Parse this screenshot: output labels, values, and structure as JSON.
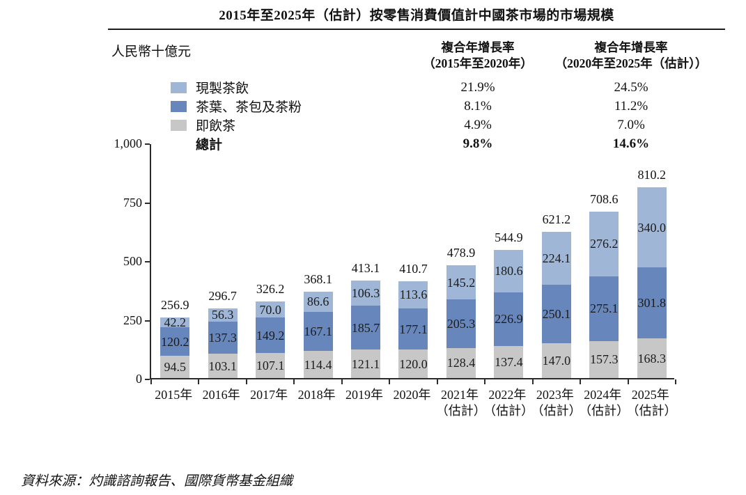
{
  "title": "2015年至2025年（估計）按零售消費價值計中國茶市場的市場規模",
  "unit_label": "人民幣十億元",
  "cagr_columns": [
    {
      "line1": "複合年增長率",
      "line2": "（2015年至2020年）"
    },
    {
      "line1": "複合年增長率",
      "line2": "（2020年至2025年（估計））"
    }
  ],
  "legend": [
    {
      "label": "現製茶飲",
      "color": "#9fb6d6",
      "bold": false,
      "cagr_2015_2020": "21.9%",
      "cagr_2020_2025": "24.5%"
    },
    {
      "label": "茶葉、茶包及茶粉",
      "color": "#6686bc",
      "bold": false,
      "cagr_2015_2020": "8.1%",
      "cagr_2020_2025": "11.2%"
    },
    {
      "label": "即飲茶",
      "color": "#c7c7c7",
      "bold": false,
      "cagr_2015_2020": "4.9%",
      "cagr_2020_2025": "7.0%"
    },
    {
      "label": "總計",
      "color": null,
      "bold": true,
      "cagr_2015_2020": "9.8%",
      "cagr_2020_2025": "14.6%"
    }
  ],
  "source": "資料來源：灼識諮詢報告、國際貨幣基金組織",
  "chart_data": {
    "type": "bar",
    "stacked": true,
    "title": "2015年至2025年（估計）按零售消費價值計中國茶市場的市場規模",
    "ylabel": "人民幣十億元",
    "xlabel": "",
    "ylim": [
      0,
      1000
    ],
    "yticks": [
      "0",
      "250",
      "500",
      "750",
      "1,000"
    ],
    "grid": false,
    "legend_position": "top-left",
    "categories": [
      "2015年",
      "2016年",
      "2017年",
      "2018年",
      "2019年",
      "2020年",
      "2021年",
      "2022年",
      "2023年",
      "2024年",
      "2025年"
    ],
    "category_sublabels": [
      "",
      "",
      "",
      "",
      "",
      "",
      "（估計）",
      "（估計）",
      "（估計）",
      "（估計）",
      "（估計）"
    ],
    "series": [
      {
        "name": "即飲茶",
        "color": "#c7c7c7",
        "values": [
          94.5,
          103.1,
          107.1,
          114.4,
          121.1,
          120.0,
          128.4,
          137.4,
          147.0,
          157.3,
          168.3
        ]
      },
      {
        "name": "茶葉、茶包及茶粉",
        "color": "#6686bc",
        "values": [
          120.2,
          137.3,
          149.2,
          167.1,
          185.7,
          177.1,
          205.3,
          226.9,
          250.1,
          275.1,
          301.8
        ]
      },
      {
        "name": "現製茶飲",
        "color": "#9fb6d6",
        "values": [
          42.2,
          56.3,
          70.0,
          86.6,
          106.3,
          113.6,
          145.2,
          180.6,
          224.1,
          276.2,
          340.0
        ]
      }
    ],
    "totals": [
      256.9,
      296.7,
      326.2,
      368.1,
      413.1,
      410.7,
      478.9,
      544.9,
      621.2,
      708.6,
      810.2
    ]
  }
}
